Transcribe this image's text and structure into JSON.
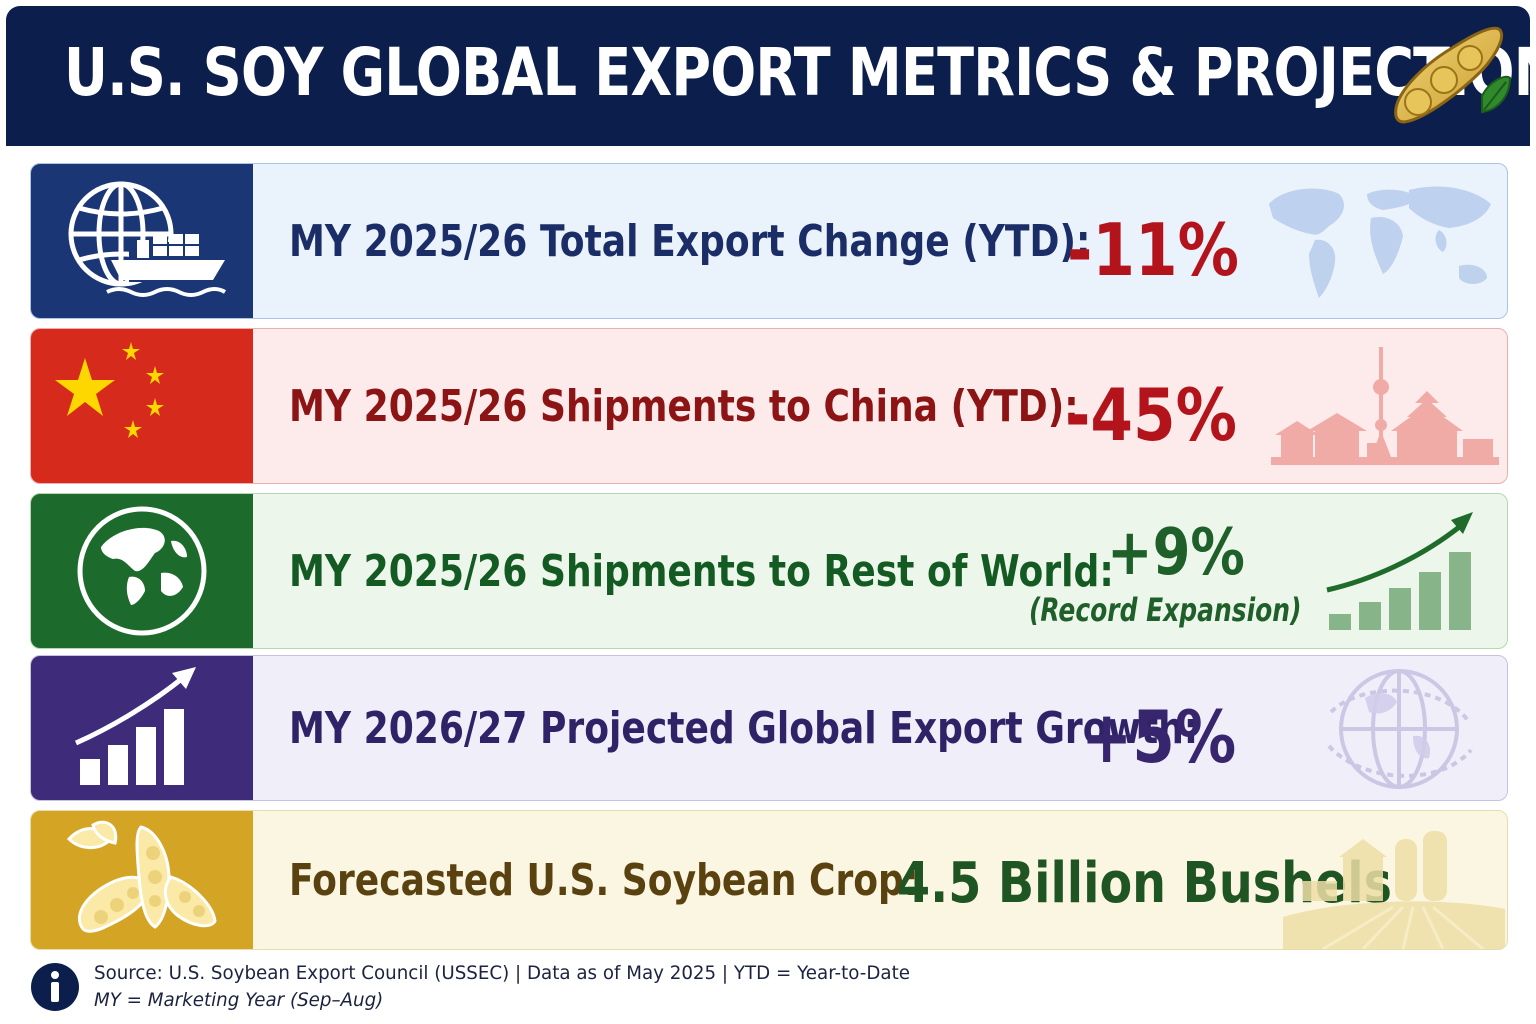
{
  "header": {
    "title": "U.S. SOY GLOBAL EXPORT METRICS & PROJECTIONS",
    "icon": "soybean-pod-icon"
  },
  "colors": {
    "header_bg": "#0c1f4c",
    "total_accent": "#1b3675",
    "china_accent": "#d62a1d",
    "rest_accent": "#1d6b2c",
    "projected_accent": "#3e2b7a",
    "crop_accent": "#d4a524",
    "negative_value": "#b3141b",
    "positive_value": "#1f5f2a",
    "projected_value": "#37256e",
    "crop_value": "#1f5522"
  },
  "metrics": [
    {
      "id": "total",
      "icon": "globe-cargo-ship-icon",
      "label": "MY 2025/26 Total Export Change (YTD):",
      "value": "-11%",
      "decoration": "world-map-icon"
    },
    {
      "id": "china",
      "icon": "china-flag-icon",
      "label": "MY 2025/26 Shipments to China (YTD):",
      "value": "-45%",
      "decoration": "china-skyline-icon"
    },
    {
      "id": "rest",
      "icon": "earth-globe-icon",
      "label": "MY 2025/26 Shipments to Rest of World:",
      "value": "+9%",
      "sub": "(Record Expansion)",
      "decoration": "growth-bar-chart-icon"
    },
    {
      "id": "projected",
      "icon": "rising-bar-chart-icon",
      "label": "MY 2026/27 Projected Global Export Growth:",
      "value": "+5%",
      "decoration": "network-globe-icon"
    },
    {
      "id": "crop",
      "icon": "soybean-plant-icon",
      "label": "Forecasted U.S. Soybean Crop:",
      "value": "4.5 Billion Bushels",
      "decoration": "farm-field-icon"
    }
  ],
  "footer": {
    "icon": "info-icon",
    "line1": "Source: U.S. Soybean Export Council (USSEC)  |  Data as of May 2025  |  YTD = Year-to-Date",
    "line2": "MY = Marketing Year (Sep–Aug)"
  }
}
